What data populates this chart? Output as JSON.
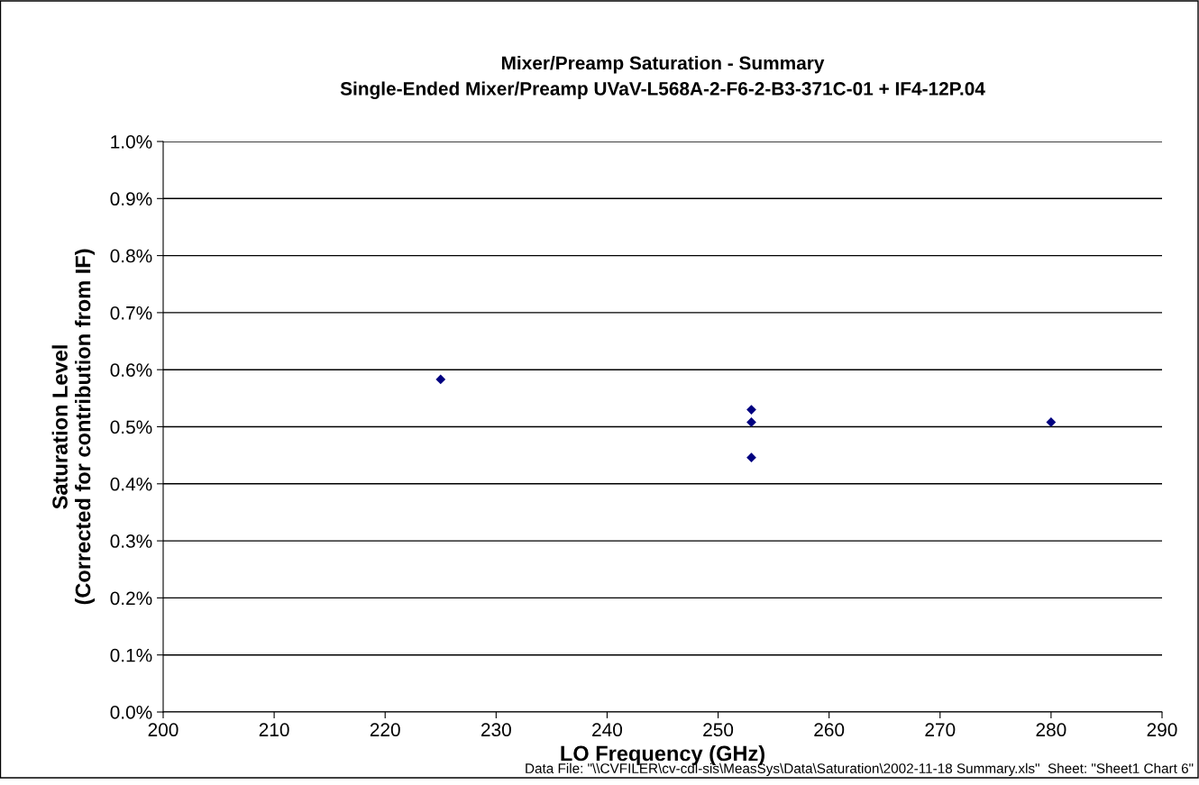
{
  "chart_data": {
    "type": "scatter",
    "title": "Mixer/Preamp Saturation - Summary\nSingle-Ended Mixer/Preamp UVaV-L568A-2-F6-2-B3-371C-01 + IF4-12P.04",
    "xlabel": "LO Frequency (GHz)",
    "ylabel": "Saturation Level\n(Corrected for contribution from IF)",
    "x": [
      225,
      253,
      253,
      253,
      280
    ],
    "values": [
      0.583,
      0.53,
      0.508,
      0.446,
      0.508
    ],
    "color": "#000080",
    "marker": "diamond",
    "grid": "y",
    "xlim": [
      200,
      290
    ],
    "xticks": [
      200,
      210,
      220,
      230,
      240,
      250,
      260,
      270,
      280,
      290
    ],
    "ylim": [
      0,
      1.0
    ],
    "yticks": [
      {
        "value": 0,
        "label": "0.0%"
      },
      {
        "value": 0.1,
        "label": "0.1%"
      },
      {
        "value": 0.2,
        "label": "0.2%"
      },
      {
        "value": 0.3,
        "label": "0.3%"
      },
      {
        "value": 0.4,
        "label": "0.4%"
      },
      {
        "value": 0.5,
        "label": "0.5%"
      },
      {
        "value": 0.6,
        "label": "0.6%"
      },
      {
        "value": 0.7,
        "label": "0.7%"
      },
      {
        "value": 0.8,
        "label": "0.8%"
      },
      {
        "value": 0.9,
        "label": "0.9%"
      },
      {
        "value": 1.0,
        "label": "1.0%"
      }
    ],
    "annotations": [
      "Data File: \"\\\\CVFILER\\cv-cdl-sis\\MeasSys\\Data\\Saturation\\2002-11-18 Summary.xls\"  Sheet: \"Sheet1 Chart 6\""
    ]
  }
}
